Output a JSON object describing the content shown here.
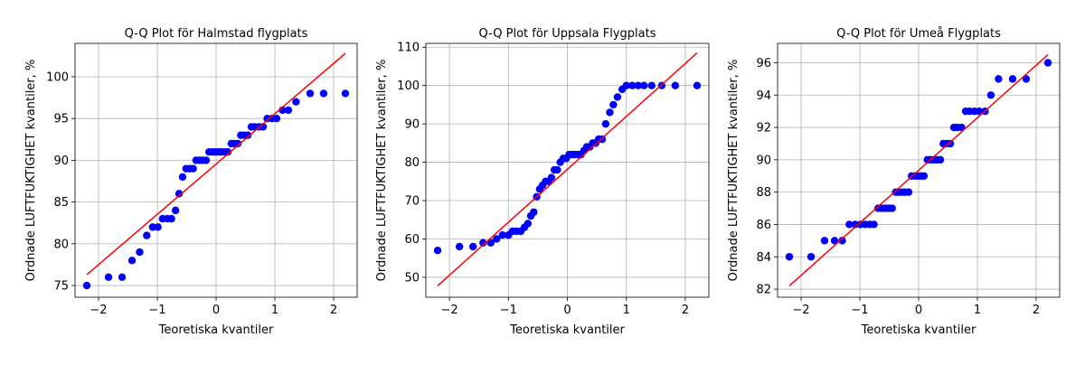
{
  "chart_data": [
    {
      "type": "scatter",
      "title": "Q-Q Plot för Halmstad flygplats",
      "xlabel": "Teoretiska kvantiler",
      "ylabel": "Ordnade LUFTFUKTIGHET kvantiler, %",
      "xlim": [
        -2.4,
        2.4
      ],
      "ylim": [
        73.6,
        104.0
      ],
      "xticks": [
        -2,
        -1,
        0,
        1,
        2
      ],
      "yticks": [
        75,
        80,
        85,
        90,
        95,
        100
      ],
      "grid": true,
      "point_color": "#0000ff",
      "line_color": "#ff0000",
      "fit_line": {
        "x": [
          -2.2,
          2.2
        ],
        "y": [
          76.3,
          102.8
        ]
      },
      "series": [
        {
          "x": [
            -2.2,
            -1.83,
            -1.6,
            -1.43,
            -1.3,
            -1.18,
            -1.08,
            -0.99,
            -0.91,
            -0.83,
            -0.76,
            -0.69,
            -0.63,
            -0.57,
            -0.51,
            -0.45,
            -0.39,
            -0.34,
            -0.28,
            -0.23,
            -0.17,
            -0.12,
            -0.06,
            -0.01,
            0.04,
            0.09,
            0.15,
            0.2,
            0.26,
            0.31,
            0.37,
            0.42,
            0.48,
            0.54,
            0.6,
            0.66,
            0.73,
            0.8,
            0.87,
            0.95,
            1.03,
            1.13,
            1.23,
            1.36,
            1.6,
            1.83,
            2.2
          ],
          "y": [
            75,
            76,
            76,
            78,
            79,
            81,
            82,
            82,
            83,
            83,
            83,
            84,
            86,
            88,
            89,
            89,
            89,
            90,
            90,
            90,
            90,
            91,
            91,
            91,
            91,
            91,
            91,
            91,
            92,
            92,
            92,
            93,
            93,
            93,
            94,
            94,
            94,
            94,
            95,
            95,
            95,
            96,
            96,
            97,
            98,
            98,
            98
          ]
        }
      ]
    },
    {
      "type": "scatter",
      "title": "Q-Q Plot för Uppsala Flygplats",
      "xlabel": "Teoretiska kvantiler",
      "ylabel": "Ordnade LUFTFUKTIGHET kvantiler, %",
      "xlim": [
        -2.4,
        2.4
      ],
      "ylim": [
        44.8,
        111.0
      ],
      "xticks": [
        -2,
        -1,
        0,
        1,
        2
      ],
      "yticks": [
        50,
        60,
        70,
        80,
        90,
        100,
        110
      ],
      "grid": true,
      "point_color": "#0000ff",
      "line_color": "#ff0000",
      "fit_line": {
        "x": [
          -2.2,
          2.2
        ],
        "y": [
          47.8,
          108.5
        ]
      },
      "series": [
        {
          "x": [
            -2.2,
            -1.83,
            -1.6,
            -1.43,
            -1.3,
            -1.2,
            -1.1,
            -1.0,
            -0.93,
            -0.86,
            -0.79,
            -0.73,
            -0.67,
            -0.62,
            -0.57,
            -0.52,
            -0.47,
            -0.42,
            -0.37,
            -0.32,
            -0.27,
            -0.22,
            -0.17,
            -0.12,
            -0.07,
            -0.02,
            0.03,
            0.08,
            0.13,
            0.18,
            0.23,
            0.28,
            0.33,
            0.38,
            0.43,
            0.48,
            0.53,
            0.59,
            0.65,
            0.72,
            0.78,
            0.85,
            0.93,
            1.0,
            1.1,
            1.2,
            1.3,
            1.43,
            1.6,
            1.83,
            2.2
          ],
          "y": [
            57,
            58,
            58,
            59,
            59,
            60,
            61,
            61,
            62,
            62,
            62,
            63,
            64,
            66,
            67,
            71,
            73,
            74,
            75,
            75,
            76,
            78,
            78,
            80,
            81,
            81,
            82,
            82,
            82,
            82,
            82,
            83,
            84,
            84,
            85,
            85,
            86,
            86,
            90,
            93,
            95,
            97,
            99,
            100,
            100,
            100,
            100,
            100,
            100,
            100,
            100
          ]
        }
      ]
    },
    {
      "type": "scatter",
      "title": "Q-Q Plot för Umeå Flygplats",
      "xlabel": "Teoretiska kvantiler",
      "ylabel": "Ordnade LUFTFUKTIGHET kvantiler, %",
      "xlim": [
        -2.4,
        2.4
      ],
      "ylim": [
        81.5,
        97.2
      ],
      "xticks": [
        -2,
        -1,
        0,
        1,
        2
      ],
      "yticks": [
        82,
        84,
        86,
        88,
        90,
        92,
        94,
        96
      ],
      "grid": true,
      "point_color": "#0000ff",
      "line_color": "#ff0000",
      "fit_line": {
        "x": [
          -2.2,
          2.2
        ],
        "y": [
          82.2,
          96.5
        ]
      },
      "series": [
        {
          "x": [
            -2.2,
            -1.83,
            -1.6,
            -1.43,
            -1.3,
            -1.18,
            -1.08,
            -0.99,
            -0.91,
            -0.83,
            -0.76,
            -0.69,
            -0.63,
            -0.57,
            -0.51,
            -0.45,
            -0.39,
            -0.34,
            -0.28,
            -0.23,
            -0.17,
            -0.12,
            -0.06,
            -0.01,
            0.04,
            0.09,
            0.15,
            0.2,
            0.26,
            0.31,
            0.37,
            0.42,
            0.48,
            0.54,
            0.6,
            0.66,
            0.73,
            0.8,
            0.87,
            0.95,
            1.03,
            1.13,
            1.23,
            1.36,
            1.6,
            1.83,
            2.2
          ],
          "y": [
            84,
            84,
            85,
            85,
            85,
            86,
            86,
            86,
            86,
            86,
            86,
            87,
            87,
            87,
            87,
            87,
            88,
            88,
            88,
            88,
            88,
            89,
            89,
            89,
            89,
            89,
            90,
            90,
            90,
            90,
            90,
            91,
            91,
            91,
            92,
            92,
            92,
            93,
            93,
            93,
            93,
            93,
            94,
            95,
            95,
            95,
            96
          ]
        }
      ]
    }
  ]
}
